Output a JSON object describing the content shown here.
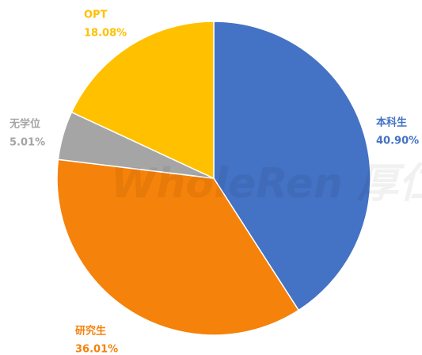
{
  "chart_data": {
    "type": "pie",
    "categories": [
      "本科生",
      "研究生",
      "无学位",
      "OPT"
    ],
    "values": [
      40.9,
      36.01,
      5.01,
      18.08
    ],
    "value_labels": [
      "40.90%",
      "36.01%",
      "5.01%",
      "18.08%"
    ],
    "colors": [
      "#4472c4",
      "#f5820a",
      "#a5a5a5",
      "#ffc000"
    ],
    "watermark": "WholeRen 厚仁"
  }
}
